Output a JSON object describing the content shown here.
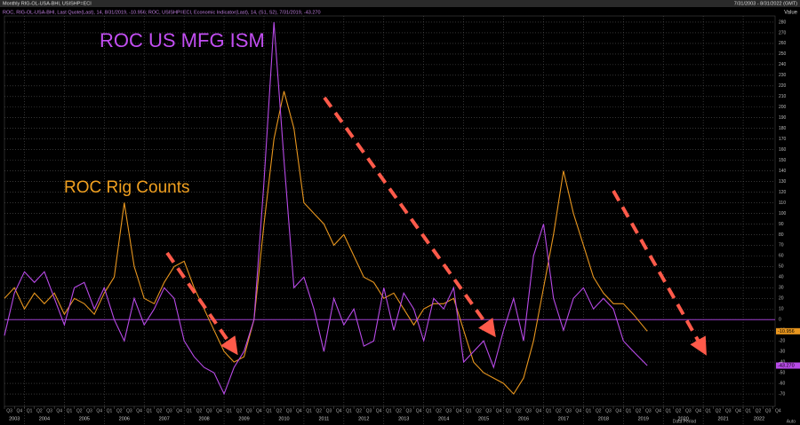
{
  "chart_data": {
    "type": "line",
    "title": "Monthly RIG-OL-USA-BHI, USISHP=ECI",
    "date_range": "7/31/2003 - 8/31/2022 (GMT)",
    "legend_text": "ROC, RIG-OL-USA-BHI, Last Quote(Last), 14, 8/31/2019, -10.956; ROC, USISHP=ECI, Economic Indicator(Last), 14, (S1, S2), 7/31/2019, -43.270",
    "y_axis_label": "Value",
    "footer_left": "Data Period",
    "footer_right": "Auto",
    "annotations": [
      "ROC US MFG ISM",
      "ROC Rig Counts"
    ],
    "x": [
      2003.5,
      2003.75,
      2004,
      2004.25,
      2004.5,
      2004.75,
      2005,
      2005.25,
      2005.5,
      2005.75,
      2006,
      2006.25,
      2006.5,
      2006.75,
      2007,
      2007.25,
      2007.5,
      2007.75,
      2008,
      2008.25,
      2008.5,
      2008.75,
      2009,
      2009.25,
      2009.5,
      2009.75,
      2010,
      2010.25,
      2010.5,
      2010.75,
      2011,
      2011.25,
      2011.5,
      2011.75,
      2012,
      2012.25,
      2012.5,
      2012.75,
      2013,
      2013.25,
      2013.5,
      2013.75,
      2014,
      2014.25,
      2014.5,
      2014.75,
      2015,
      2015.25,
      2015.5,
      2015.75,
      2016,
      2016.25,
      2016.5,
      2016.75,
      2017,
      2017.25,
      2017.5,
      2017.75,
      2018,
      2018.25,
      2018.5,
      2018.75,
      2019,
      2019.25,
      2019.6
    ],
    "series": [
      {
        "name": "ROC Rig Counts",
        "color": "#e8961e",
        "last_label": "-10.956",
        "values": [
          20,
          30,
          10,
          25,
          15,
          25,
          5,
          20,
          15,
          5,
          25,
          40,
          110,
          50,
          20,
          15,
          35,
          50,
          55,
          30,
          10,
          -10,
          -30,
          -40,
          -35,
          0,
          90,
          170,
          215,
          180,
          110,
          100,
          90,
          70,
          80,
          60,
          40,
          35,
          20,
          25,
          10,
          -5,
          10,
          15,
          15,
          20,
          -10,
          -40,
          -50,
          -55,
          -60,
          -70,
          -55,
          -20,
          30,
          80,
          140,
          100,
          70,
          40,
          25,
          15,
          15,
          5,
          -10.956
        ]
      },
      {
        "name": "ROC US MFG ISM",
        "color": "#b84ae8",
        "last_label": "-43.270",
        "values": [
          -15,
          25,
          45,
          35,
          45,
          20,
          -5,
          30,
          35,
          10,
          30,
          0,
          -20,
          20,
          -5,
          10,
          30,
          20,
          -20,
          -35,
          -45,
          -50,
          -70,
          -45,
          -30,
          0,
          130,
          280,
          150,
          30,
          40,
          10,
          -30,
          20,
          -5,
          10,
          -25,
          -20,
          30,
          -10,
          25,
          10,
          -20,
          20,
          10,
          30,
          -40,
          -30,
          -20,
          -45,
          -10,
          20,
          -20,
          60,
          90,
          20,
          -10,
          20,
          30,
          10,
          20,
          10,
          -20,
          -30,
          -43.27
        ]
      }
    ],
    "baseline": 0,
    "baseline_color": "#a040d0",
    "xlim": [
      2003.5,
      2022.8
    ],
    "xticks": [
      2003,
      2004,
      2005,
      2006,
      2007,
      2008,
      2009,
      2010,
      2011,
      2012,
      2013,
      2014,
      2015,
      2016,
      2017,
      2018,
      2019,
      2020,
      2021,
      2022
    ],
    "quarter_ticks": [
      {
        "value": 2003.5,
        "label": "Q3"
      },
      {
        "value": 2003.75,
        "label": "Q4"
      },
      {
        "value": 2004,
        "label": "Q1"
      },
      {
        "value": 2004.25,
        "label": "Q2"
      },
      {
        "value": 2004.5,
        "label": "Q3"
      },
      {
        "value": 2004.75,
        "label": "Q4"
      },
      {
        "value": 2005,
        "label": "Q1"
      },
      {
        "value": 2005.25,
        "label": "Q2"
      },
      {
        "value": 2005.5,
        "label": "Q3"
      },
      {
        "value": 2005.75,
        "label": "Q4"
      },
      {
        "value": 2006,
        "label": "Q1"
      },
      {
        "value": 2006.25,
        "label": "Q2"
      },
      {
        "value": 2006.5,
        "label": "Q3"
      },
      {
        "value": 2006.75,
        "label": "Q4"
      },
      {
        "value": 2007,
        "label": "Q1"
      },
      {
        "value": 2007.25,
        "label": "Q2"
      },
      {
        "value": 2007.5,
        "label": "Q3"
      },
      {
        "value": 2007.75,
        "label": "Q4"
      },
      {
        "value": 2008,
        "label": "Q1"
      },
      {
        "value": 2008.25,
        "label": "Q2"
      },
      {
        "value": 2008.5,
        "label": "Q3"
      },
      {
        "value": 2008.75,
        "label": "Q4"
      },
      {
        "value": 2009,
        "label": "Q1"
      },
      {
        "value": 2009.25,
        "label": "Q2"
      },
      {
        "value": 2009.5,
        "label": "Q3"
      },
      {
        "value": 2009.75,
        "label": "Q4"
      },
      {
        "value": 2010,
        "label": "Q1"
      },
      {
        "value": 2010.25,
        "label": "Q2"
      },
      {
        "value": 2010.5,
        "label": "Q3"
      },
      {
        "value": 2010.75,
        "label": "Q4"
      },
      {
        "value": 2011,
        "label": "Q1"
      },
      {
        "value": 2011.25,
        "label": "Q2"
      },
      {
        "value": 2011.5,
        "label": "Q3"
      },
      {
        "value": 2011.75,
        "label": "Q4"
      },
      {
        "value": 2012,
        "label": "Q1"
      },
      {
        "value": 2012.25,
        "label": "Q2"
      },
      {
        "value": 2012.5,
        "label": "Q3"
      },
      {
        "value": 2012.75,
        "label": "Q4"
      },
      {
        "value": 2013,
        "label": "Q1"
      },
      {
        "value": 2013.25,
        "label": "Q2"
      },
      {
        "value": 2013.5,
        "label": "Q3"
      },
      {
        "value": 2013.75,
        "label": "Q4"
      },
      {
        "value": 2014,
        "label": "Q1"
      },
      {
        "value": 2014.25,
        "label": "Q2"
      },
      {
        "value": 2014.5,
        "label": "Q3"
      },
      {
        "value": 2014.75,
        "label": "Q4"
      },
      {
        "value": 2015,
        "label": "Q1"
      },
      {
        "value": 2015.25,
        "label": "Q2"
      },
      {
        "value": 2015.5,
        "label": "Q3"
      },
      {
        "value": 2015.75,
        "label": "Q4"
      },
      {
        "value": 2016,
        "label": "Q1"
      },
      {
        "value": 2016.25,
        "label": "Q2"
      },
      {
        "value": 2016.5,
        "label": "Q3"
      },
      {
        "value": 2016.75,
        "label": "Q4"
      },
      {
        "value": 2017,
        "label": "Q1"
      },
      {
        "value": 2017.25,
        "label": "Q2"
      },
      {
        "value": 2017.5,
        "label": "Q3"
      },
      {
        "value": 2017.75,
        "label": "Q4"
      },
      {
        "value": 2018,
        "label": "Q1"
      },
      {
        "value": 2018.25,
        "label": "Q2"
      },
      {
        "value": 2018.5,
        "label": "Q3"
      },
      {
        "value": 2018.75,
        "label": "Q4"
      },
      {
        "value": 2019,
        "label": "Q1"
      },
      {
        "value": 2019.25,
        "label": "Q2"
      },
      {
        "value": 2019.5,
        "label": "Q3"
      },
      {
        "value": 2019.75,
        "label": "Q4"
      },
      {
        "value": 2020,
        "label": "Q1"
      },
      {
        "value": 2020.25,
        "label": "Q2"
      },
      {
        "value": 2020.5,
        "label": "Q3"
      },
      {
        "value": 2020.75,
        "label": "Q4"
      },
      {
        "value": 2021,
        "label": "Q1"
      },
      {
        "value": 2021.25,
        "label": "Q2"
      },
      {
        "value": 2021.5,
        "label": "Q3"
      },
      {
        "value": 2021.75,
        "label": "Q4"
      },
      {
        "value": 2022,
        "label": "Q1"
      },
      {
        "value": 2022.25,
        "label": "Q2"
      },
      {
        "value": 2022.5,
        "label": "Q3"
      },
      {
        "value": 2022.75,
        "label": "Q4"
      }
    ],
    "ylim": [
      -80,
      290
    ],
    "yticks": [
      -70,
      -60,
      -50,
      -40,
      -30,
      -20,
      -10,
      0,
      10,
      20,
      30,
      40,
      50,
      60,
      70,
      80,
      90,
      100,
      110,
      120,
      130,
      140,
      150,
      160,
      170,
      180,
      190,
      200,
      210,
      220,
      230,
      240,
      250,
      260,
      270,
      280
    ],
    "grid": true
  }
}
